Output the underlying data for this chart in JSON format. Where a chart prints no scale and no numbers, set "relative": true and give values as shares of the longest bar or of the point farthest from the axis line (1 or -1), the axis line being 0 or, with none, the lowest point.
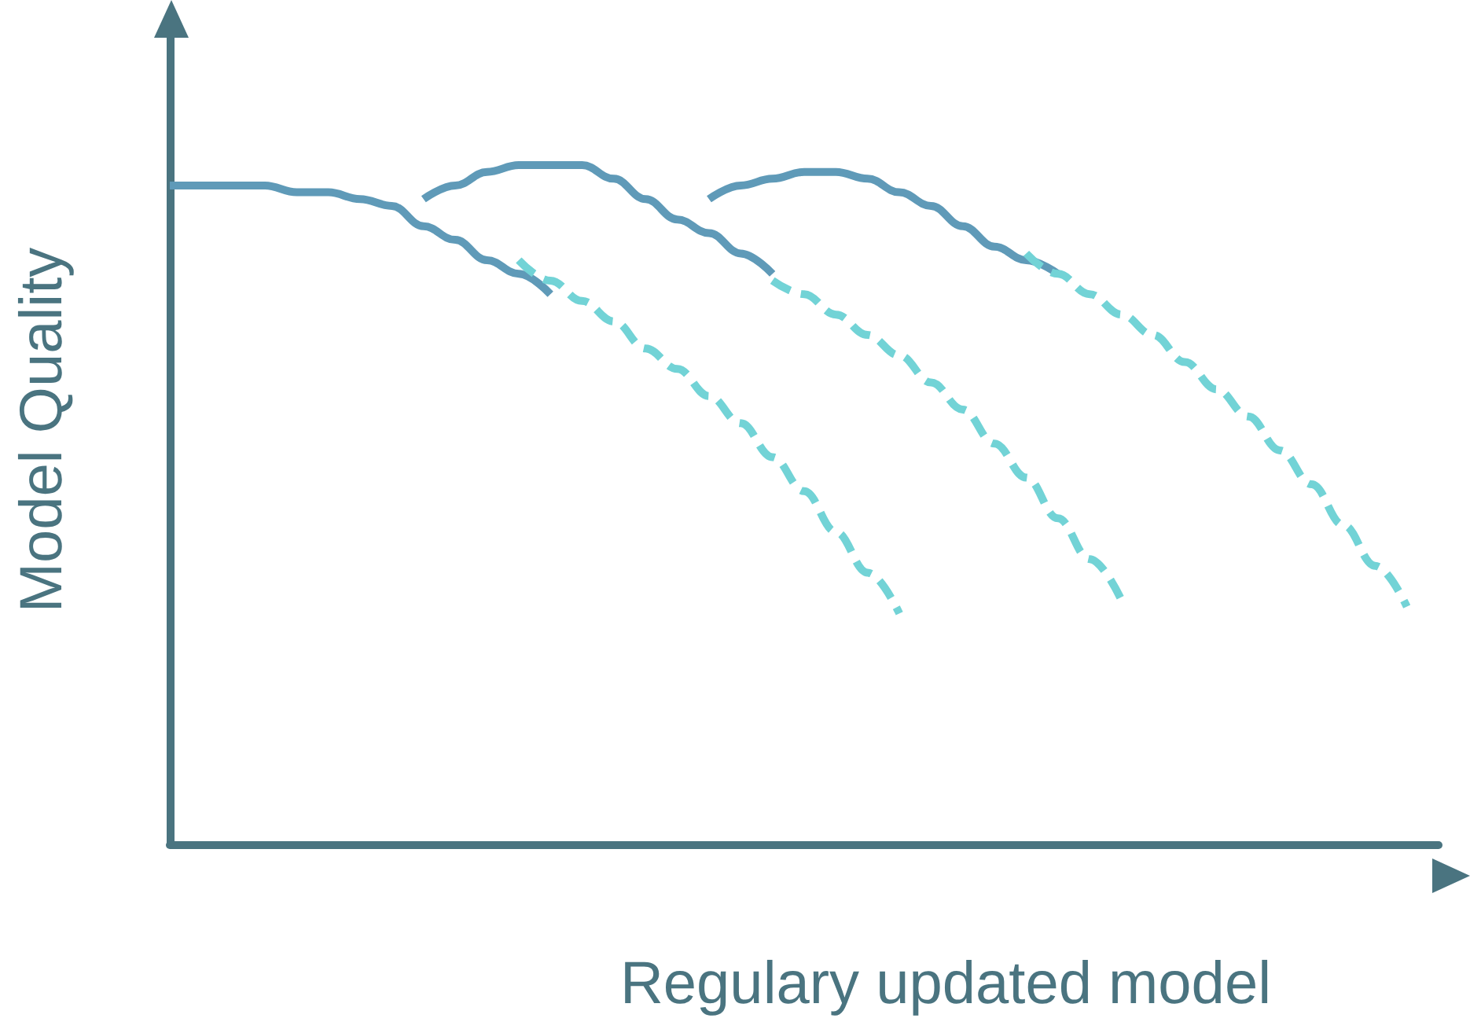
{
  "chart_data": {
    "type": "line",
    "xlabel": "Regulary updated model",
    "ylabel": "Model Quality",
    "relative": true,
    "marker": "none",
    "categories": [
      null,
      null,
      null,
      null,
      null,
      null,
      null,
      null,
      null,
      null,
      null,
      null,
      null,
      null,
      null,
      null,
      null,
      null,
      null,
      null,
      null,
      null,
      null,
      null,
      null,
      null,
      null,
      null,
      null,
      null,
      null,
      null,
      null,
      null,
      null,
      null,
      null,
      null,
      null,
      null,
      null
    ],
    "series": [
      {
        "color": "#5f9ab8",
        "line_style": "solid",
        "values": [
          0.97,
          0.97,
          0.97,
          0.97,
          0.96,
          0.96,
          0.95,
          0.94,
          0.91,
          0.89,
          0.86,
          0.84,
          0.81,
          null,
          null,
          null,
          null,
          null,
          null,
          null,
          null,
          null,
          null,
          null,
          null,
          null,
          null,
          null,
          null,
          null,
          null,
          null,
          null,
          null,
          null,
          null,
          null,
          null,
          null,
          null,
          null
        ]
      },
      {
        "color": "#72d3d6",
        "line_style": "dashed",
        "values": [
          null,
          null,
          null,
          null,
          null,
          null,
          null,
          null,
          null,
          null,
          null,
          0.86,
          0.83,
          0.8,
          0.77,
          0.73,
          0.7,
          0.66,
          0.62,
          0.57,
          0.52,
          0.46,
          0.4,
          0.34,
          null,
          null,
          null,
          null,
          null,
          null,
          null,
          null,
          null,
          null,
          null,
          null,
          null,
          null,
          null,
          null,
          null
        ]
      },
      {
        "color": "#5f9ab8",
        "line_style": "solid",
        "values": [
          null,
          null,
          null,
          null,
          null,
          null,
          null,
          null,
          0.95,
          0.97,
          0.99,
          1.0,
          1.0,
          1.0,
          0.98,
          0.95,
          0.92,
          0.9,
          0.87,
          0.84,
          null,
          null,
          null,
          null,
          null,
          null,
          null,
          null,
          null,
          null,
          null,
          null,
          null,
          null,
          null,
          null,
          null,
          null,
          null,
          null,
          null
        ]
      },
      {
        "color": "#72d3d6",
        "line_style": "dashed",
        "values": [
          null,
          null,
          null,
          null,
          null,
          null,
          null,
          null,
          null,
          null,
          null,
          null,
          null,
          null,
          null,
          null,
          null,
          null,
          null,
          0.83,
          0.81,
          0.78,
          0.75,
          0.72,
          0.68,
          0.64,
          0.59,
          0.54,
          0.48,
          0.42,
          0.36,
          null,
          null,
          null,
          null,
          null,
          null,
          null,
          null,
          null,
          null
        ]
      },
      {
        "color": "#5f9ab8",
        "line_style": "solid",
        "values": [
          null,
          null,
          null,
          null,
          null,
          null,
          null,
          null,
          null,
          null,
          null,
          null,
          null,
          null,
          null,
          null,
          null,
          0.95,
          0.97,
          0.98,
          0.99,
          0.99,
          0.98,
          0.96,
          0.94,
          0.91,
          0.88,
          0.86,
          0.84,
          null,
          null,
          null,
          null,
          null,
          null,
          null,
          null,
          null,
          null,
          null,
          null
        ]
      },
      {
        "color": "#72d3d6",
        "line_style": "dashed",
        "values": [
          null,
          null,
          null,
          null,
          null,
          null,
          null,
          null,
          null,
          null,
          null,
          null,
          null,
          null,
          null,
          null,
          null,
          null,
          null,
          null,
          null,
          null,
          null,
          null,
          null,
          null,
          null,
          0.87,
          0.84,
          0.81,
          0.78,
          0.75,
          0.71,
          0.67,
          0.63,
          0.58,
          0.53,
          0.47,
          0.41,
          0.35,
          null
        ]
      }
    ]
  }
}
